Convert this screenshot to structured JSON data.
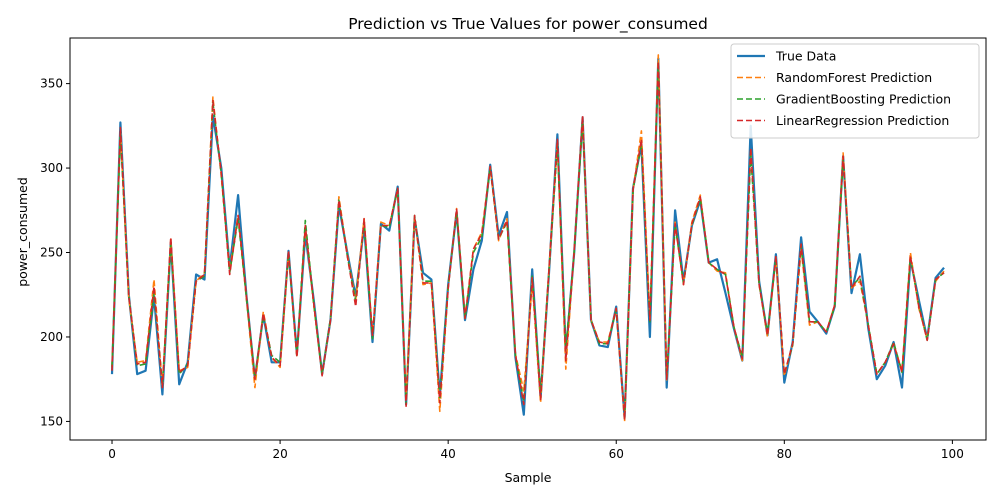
{
  "chart_data": {
    "type": "line",
    "title": "Prediction vs True Values for power_consumed",
    "xlabel": "Sample",
    "ylabel": "power_consumed",
    "xlim": [
      -5,
      104
    ],
    "ylim": [
      139,
      377
    ],
    "xticks": [
      0,
      20,
      40,
      60,
      80,
      100
    ],
    "yticks": [
      150,
      200,
      250,
      300,
      350
    ],
    "legend_position": "top-right",
    "grid": false,
    "x": [
      0,
      1,
      2,
      3,
      4,
      5,
      6,
      7,
      8,
      9,
      10,
      11,
      12,
      13,
      14,
      15,
      16,
      17,
      18,
      19,
      20,
      21,
      22,
      23,
      24,
      25,
      26,
      27,
      28,
      29,
      30,
      31,
      32,
      33,
      34,
      35,
      36,
      37,
      38,
      39,
      40,
      41,
      42,
      43,
      44,
      45,
      46,
      47,
      48,
      49,
      50,
      51,
      52,
      53,
      54,
      55,
      56,
      57,
      58,
      59,
      60,
      61,
      62,
      63,
      64,
      65,
      66,
      67,
      68,
      69,
      70,
      71,
      72,
      73,
      74,
      75,
      76,
      77,
      78,
      79,
      80,
      81,
      82,
      83,
      84,
      85,
      86,
      87,
      88,
      89,
      90,
      91,
      92,
      93,
      94,
      95,
      96,
      97,
      98,
      99
    ],
    "series": [
      {
        "name": "True Data",
        "color": "#1f77b4",
        "style": "solid",
        "values": [
          178,
          327,
          225,
          178,
          180,
          224,
          166,
          256,
          172,
          185,
          237,
          234,
          331,
          300,
          241,
          284,
          224,
          175,
          213,
          185,
          185,
          251,
          190,
          261,
          222,
          178,
          210,
          278,
          250,
          224,
          266,
          197,
          267,
          263,
          289,
          160,
          270,
          238,
          234,
          165,
          231,
          274,
          210,
          240,
          257,
          302,
          260,
          274,
          188,
          154,
          240,
          164,
          238,
          320,
          190,
          250,
          330,
          210,
          195,
          194,
          218,
          152,
          288,
          314,
          200,
          365,
          170,
          275,
          233,
          266,
          281,
          244,
          246,
          226,
          205,
          186,
          325,
          233,
          201,
          249,
          173,
          197,
          259,
          215,
          209,
          202,
          218,
          307,
          226,
          249,
          205,
          175,
          183,
          197,
          170,
          246,
          222,
          199,
          235,
          241
        ]
      },
      {
        "name": "RandomForest Prediction",
        "color": "#ff7f0e",
        "style": "dashed",
        "values": [
          183,
          322,
          223,
          185,
          186,
          234,
          170,
          258,
          180,
          182,
          233,
          238,
          342,
          295,
          240,
          272,
          222,
          170,
          215,
          188,
          182,
          250,
          188,
          265,
          219,
          178,
          210,
          283,
          249,
          222,
          270,
          200,
          268,
          266,
          287,
          163,
          271,
          231,
          232,
          156,
          229,
          276,
          212,
          252,
          262,
          301,
          257,
          270,
          190,
          168,
          232,
          161,
          240,
          316,
          181,
          251,
          330,
          210,
          197,
          197,
          217,
          150,
          287,
          322,
          211,
          367,
          174,
          268,
          231,
          268,
          284,
          244,
          239,
          238,
          206,
          186,
          311,
          231,
          200,
          247,
          177,
          196,
          252,
          207,
          209,
          203,
          219,
          309,
          229,
          233,
          207,
          178,
          185,
          196,
          180,
          250,
          217,
          199,
          233,
          239
        ]
      },
      {
        "name": "GradientBoosting Prediction",
        "color": "#2ca02c",
        "style": "dashed",
        "values": [
          182,
          320,
          224,
          183,
          184,
          226,
          172,
          255,
          178,
          184,
          233,
          236,
          339,
          296,
          238,
          270,
          223,
          176,
          213,
          189,
          185,
          250,
          189,
          269,
          220,
          178,
          211,
          281,
          248,
          221,
          268,
          199,
          266,
          265,
          288,
          160,
          272,
          233,
          233,
          163,
          231,
          274,
          211,
          250,
          259,
          300,
          258,
          268,
          189,
          162,
          236,
          167,
          239,
          313,
          193,
          250,
          327,
          210,
          196,
          196,
          216,
          153,
          287,
          314,
          209,
          362,
          176,
          266,
          232,
          266,
          282,
          244,
          240,
          237,
          206,
          188,
          308,
          232,
          202,
          247,
          178,
          195,
          254,
          209,
          209,
          203,
          218,
          305,
          230,
          235,
          207,
          178,
          185,
          197,
          179,
          247,
          219,
          198,
          234,
          238
        ]
      },
      {
        "name": "LinearRegression Prediction",
        "color": "#d62728",
        "style": "dashed",
        "values": [
          180,
          324,
          224,
          184,
          185,
          230,
          170,
          259,
          179,
          183,
          233,
          237,
          340,
          297,
          237,
          272,
          224,
          175,
          214,
          188,
          183,
          251,
          188,
          266,
          220,
          177,
          210,
          281,
          248,
          218,
          270,
          201,
          266,
          266,
          288,
          159,
          272,
          232,
          232,
          161,
          229,
          276,
          211,
          252,
          261,
          301,
          258,
          269,
          190,
          160,
          235,
          163,
          240,
          317,
          186,
          251,
          331,
          210,
          197,
          196,
          217,
          151,
          287,
          317,
          210,
          363,
          175,
          267,
          231,
          267,
          283,
          244,
          240,
          237,
          206,
          187,
          312,
          231,
          201,
          248,
          178,
          196,
          255,
          209,
          209,
          203,
          219,
          307,
          229,
          236,
          207,
          178,
          185,
          196,
          179,
          248,
          218,
          198,
          234,
          238
        ]
      }
    ]
  }
}
